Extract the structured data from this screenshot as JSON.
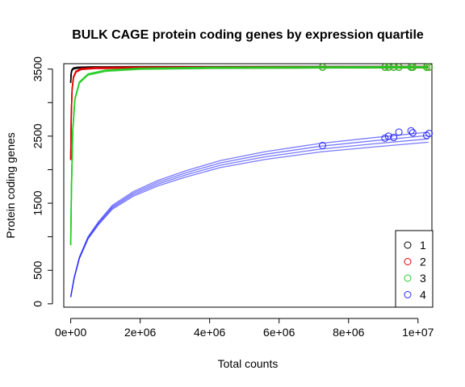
{
  "chart_data": {
    "type": "line",
    "title": "BULK CAGE protein coding genes by expression quartile",
    "xlabel": "Total counts",
    "ylabel": "Protein coding genes",
    "xlim": [
      -200000,
      10400000
    ],
    "ylim": [
      -50,
      3580
    ],
    "x_ticks": [
      {
        "value": 0,
        "label": "0e+00"
      },
      {
        "value": 2000000,
        "label": "2e+06"
      },
      {
        "value": 4000000,
        "label": "4e+06"
      },
      {
        "value": 6000000,
        "label": "6e+06"
      },
      {
        "value": 8000000,
        "label": "8e+06"
      },
      {
        "value": 10000000,
        "label": "1e+07"
      }
    ],
    "y_ticks": [
      {
        "value": 0,
        "label": "0"
      },
      {
        "value": 500,
        "label": "500"
      },
      {
        "value": 1500,
        "label": "1500"
      },
      {
        "value": 2500,
        "label": "2500"
      },
      {
        "value": 3500,
        "label": "3500"
      }
    ],
    "y_minor_ticks": [
      1000,
      2000,
      3000
    ],
    "grid": false,
    "legend": {
      "position": "bottom-right",
      "entries": [
        {
          "label": "1",
          "color": "#000000"
        },
        {
          "label": "2",
          "color": "#df0000"
        },
        {
          "label": "3",
          "color": "#22cc22"
        },
        {
          "label": "4",
          "color": "#2222ff"
        }
      ]
    },
    "endpoints_x": [
      7250000,
      9050000,
      9150000,
      9300000,
      9450000,
      9800000,
      9850000,
      10250000,
      10320000
    ],
    "series": [
      {
        "name": "1",
        "color": "#000000",
        "curve_x": [
          0,
          10000,
          30000,
          80000,
          200000,
          600000,
          2000000,
          6000000,
          10300000
        ],
        "curve_y": [
          3300,
          3420,
          3480,
          3510,
          3520,
          3525,
          3528,
          3530,
          3530
        ],
        "endpoint_y": [
          3530,
          3530,
          3530,
          3530,
          3530,
          3530,
          3530,
          3530,
          3530
        ]
      },
      {
        "name": "2",
        "color": "#df0000",
        "curve_x": [
          0,
          15000,
          40000,
          80000,
          150000,
          300000,
          700000,
          2000000,
          6000000,
          10300000
        ],
        "curve_y": [
          2150,
          2800,
          3200,
          3380,
          3460,
          3500,
          3515,
          3522,
          3525,
          3528
        ],
        "endpoint_y": [
          3528,
          3528,
          3528,
          3528,
          3528,
          3528,
          3528,
          3528,
          3528
        ]
      },
      {
        "name": "3",
        "color": "#22cc22",
        "curve_x": [
          0,
          20000,
          60000,
          120000,
          250000,
          500000,
          1000000,
          2000000,
          4000000,
          7000000,
          10300000
        ],
        "curve_y": [
          880,
          1700,
          2600,
          3050,
          3300,
          3420,
          3475,
          3505,
          3518,
          3524,
          3527
        ],
        "endpoint_y": [
          3527,
          3527,
          3527,
          3527,
          3527,
          3527,
          3527,
          3527,
          3527
        ]
      },
      {
        "name": "4",
        "color": "#2222ff",
        "curve_x": [
          0,
          100000,
          250000,
          500000,
          800000,
          1200000,
          1800000,
          2500000,
          3300000,
          4300000,
          5600000,
          7200000,
          8700000,
          10300000
        ],
        "curve_y": [
          100,
          390,
          690,
          990,
          1210,
          1450,
          1650,
          1810,
          1950,
          2100,
          2230,
          2350,
          2430,
          2510
        ],
        "endpoint_y": [
          2360,
          2470,
          2500,
          2480,
          2560,
          2580,
          2550,
          2510,
          2540
        ]
      }
    ]
  }
}
